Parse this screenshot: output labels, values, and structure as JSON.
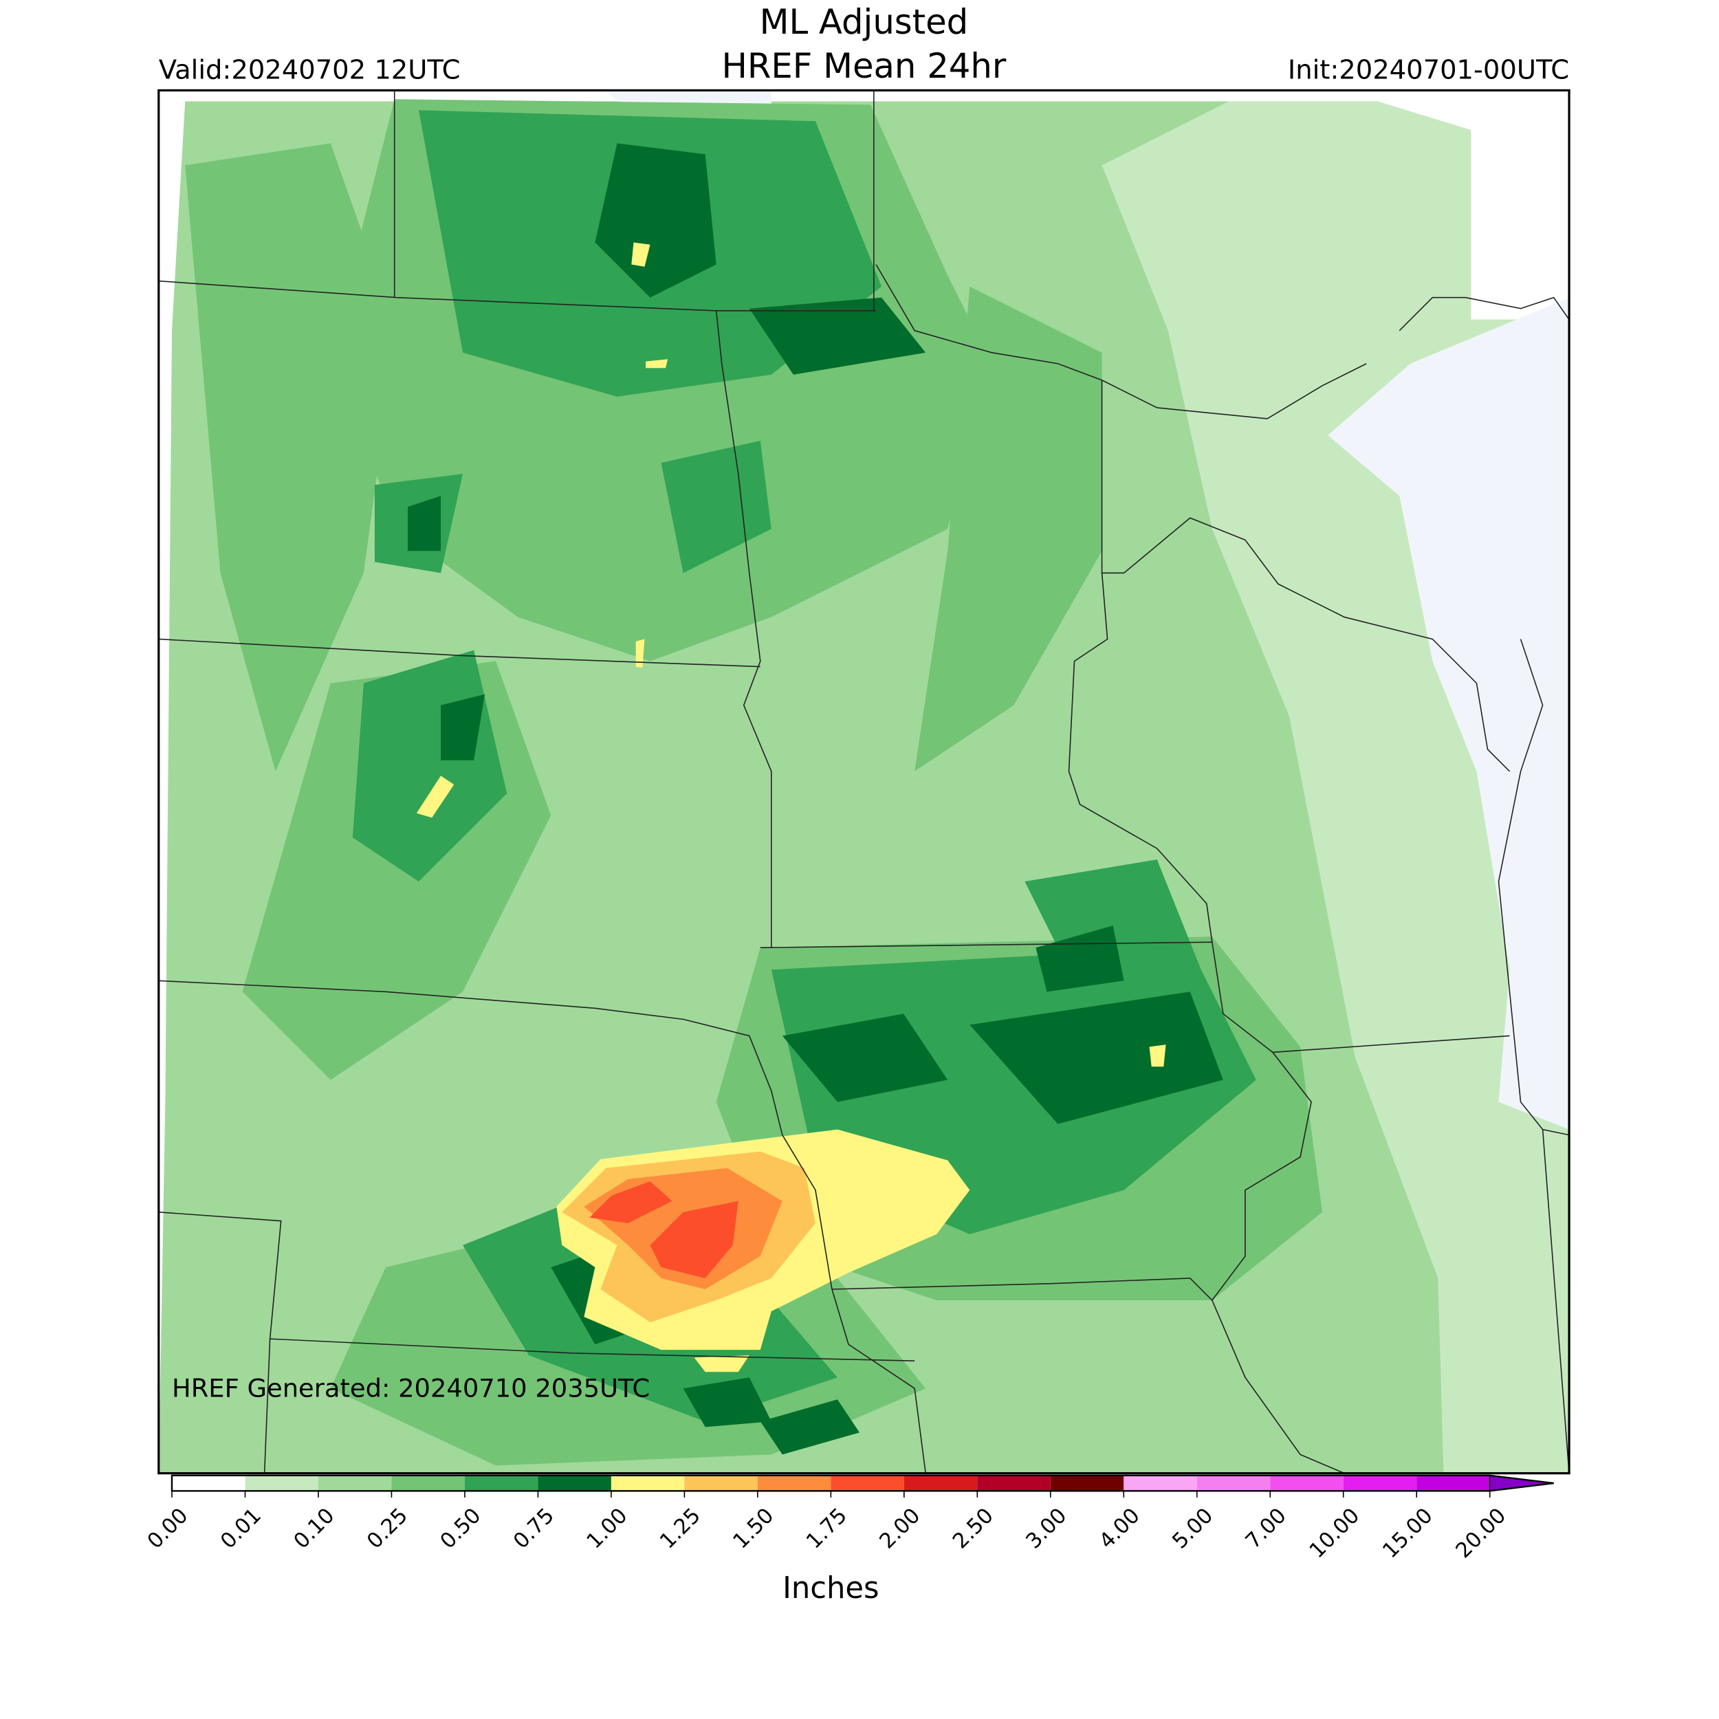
{
  "header": {
    "title_line1": "ML Adjusted",
    "title_line2": "HREF Mean 24hr",
    "valid": "Valid:20240702 12UTC",
    "init": "Init:20240701-00UTC"
  },
  "annotation": "HREF Generated: 20240710 2035UTC",
  "colorbar": {
    "label": "Inches",
    "ticks": [
      {
        "value": 0,
        "label": "0.00"
      },
      {
        "value": 0.01,
        "label": "0.01"
      },
      {
        "value": 0.1,
        "label": "0.10"
      },
      {
        "value": 0.25,
        "label": "0.25"
      },
      {
        "value": 0.5,
        "label": "0.50"
      },
      {
        "value": 0.75,
        "label": "0.75"
      },
      {
        "value": 1,
        "label": "1.00"
      },
      {
        "value": 1.25,
        "label": "1.25"
      },
      {
        "value": 1.5,
        "label": "1.50"
      },
      {
        "value": 1.75,
        "label": "1.75"
      },
      {
        "value": 2,
        "label": "2.00"
      },
      {
        "value": 2.5,
        "label": "2.50"
      },
      {
        "value": 3,
        "label": "3.00"
      },
      {
        "value": 4,
        "label": "4.00"
      },
      {
        "value": 5,
        "label": "5.00"
      },
      {
        "value": 7,
        "label": "7.00"
      },
      {
        "value": 10,
        "label": "10.00"
      },
      {
        "value": 15,
        "label": "15.00"
      },
      {
        "value": 20,
        "label": "20.00"
      }
    ],
    "colors": [
      "#ffffff",
      "#c7e9c0",
      "#a1d99b",
      "#74c476",
      "#31a354",
      "#006d2c",
      "#fff782",
      "#fdc558",
      "#fd8d3c",
      "#fc4e2a",
      "#d91a1c",
      "#b10026",
      "#6e0000",
      "#f9a6f4",
      "#f67ff0",
      "#f24ef0",
      "#e41ef0",
      "#c200e0",
      "#8600c8"
    ]
  }
}
